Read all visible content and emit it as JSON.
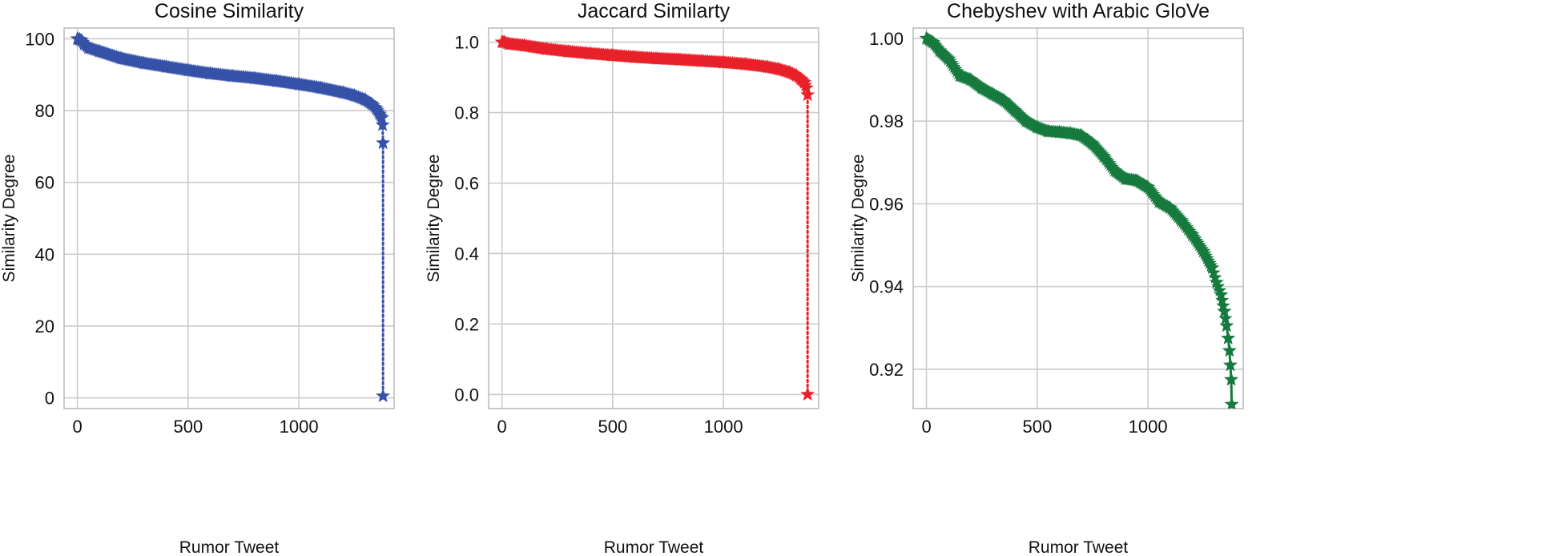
{
  "chart_data": [
    {
      "type": "line",
      "title": "Cosine Similarity",
      "xlabel": "Rumor Tweet",
      "ylabel": "Similarity Degree",
      "xlim": [
        -60,
        1430
      ],
      "ylim": [
        -3,
        103
      ],
      "xticks": [
        0,
        500,
        1000
      ],
      "xtick_labels": [
        "0",
        "500",
        "1000"
      ],
      "yticks": [
        0,
        20,
        40,
        60,
        80,
        100
      ],
      "ytick_labels": [
        "0",
        "20",
        "40",
        "60",
        "80",
        "100"
      ],
      "grid": true,
      "legend": "none",
      "series": [
        {
          "color": "#3651a8",
          "marker": "star",
          "linestyle": "dotted",
          "x": [
            0,
            10,
            20,
            30,
            50,
            100,
            200,
            300,
            400,
            500,
            600,
            700,
            800,
            900,
            1000,
            1100,
            1200,
            1250,
            1300,
            1330,
            1350,
            1365,
            1375,
            1378,
            1380,
            1380
          ],
          "y": [
            100,
            99.8,
            99.5,
            98.5,
            97.5,
            96.5,
            94.5,
            93.2,
            92.2,
            91.2,
            90.3,
            89.6,
            89,
            88.2,
            87.3,
            86.3,
            85,
            84.2,
            83,
            81.8,
            80.5,
            79,
            78,
            76,
            71,
            0.5
          ]
        }
      ]
    },
    {
      "type": "line",
      "title": "Jaccard Similarty",
      "xlabel": "Rumor Tweet",
      "ylabel": "Similarity Degree",
      "xlim": [
        -60,
        1430
      ],
      "ylim": [
        -0.04,
        1.04
      ],
      "xticks": [
        0,
        500,
        1000
      ],
      "xtick_labels": [
        "0",
        "500",
        "1000"
      ],
      "yticks": [
        0.0,
        0.2,
        0.4,
        0.6,
        0.8,
        1.0
      ],
      "ytick_labels": [
        "0.0",
        "0.2",
        "0.4",
        "0.6",
        "0.8",
        "1.0"
      ],
      "grid": true,
      "legend": "none",
      "series": [
        {
          "color": "#e8202a",
          "marker": "star",
          "linestyle": "dotted",
          "x": [
            0,
            10,
            30,
            100,
            200,
            300,
            400,
            500,
            600,
            700,
            800,
            900,
            1000,
            1100,
            1200,
            1250,
            1300,
            1330,
            1350,
            1365,
            1375,
            1380,
            1380
          ],
          "y": [
            1.0,
            1.0,
            0.995,
            0.99,
            0.98,
            0.973,
            0.967,
            0.962,
            0.957,
            0.953,
            0.95,
            0.946,
            0.942,
            0.937,
            0.929,
            0.923,
            0.914,
            0.905,
            0.895,
            0.885,
            0.87,
            0.85,
            0.0
          ]
        }
      ]
    },
    {
      "type": "line",
      "title": "Chebyshev with Arabic GloVe",
      "xlabel": "Rumor Tweet",
      "ylabel": "Similarity Degree",
      "xlim": [
        -60,
        1430
      ],
      "ylim": [
        0.9105,
        1.0025
      ],
      "xticks": [
        0,
        500,
        1000
      ],
      "xtick_labels": [
        "0",
        "500",
        "1000"
      ],
      "yticks": [
        0.92,
        0.94,
        0.96,
        0.98,
        1.0
      ],
      "ytick_labels": [
        "0.92",
        "0.94",
        "0.96",
        "0.98",
        "1.00"
      ],
      "grid": true,
      "legend": "none",
      "series": [
        {
          "color": "#167a3e",
          "marker": "star",
          "linestyle": "solid",
          "x": [
            0,
            30,
            60,
            100,
            150,
            200,
            250,
            300,
            350,
            400,
            450,
            500,
            550,
            600,
            650,
            700,
            750,
            800,
            850,
            900,
            950,
            1000,
            1050,
            1100,
            1150,
            1200,
            1250,
            1290,
            1310,
            1330,
            1345,
            1355,
            1362,
            1368,
            1372,
            1376,
            1378
          ],
          "y": [
            1.0,
            0.999,
            0.997,
            0.995,
            0.991,
            0.99,
            0.988,
            0.9865,
            0.985,
            0.9825,
            0.98,
            0.9785,
            0.9775,
            0.9773,
            0.977,
            0.9765,
            0.9745,
            0.9715,
            0.968,
            0.966,
            0.9656,
            0.964,
            0.9605,
            0.959,
            0.956,
            0.9525,
            0.9485,
            0.9445,
            0.941,
            0.938,
            0.934,
            0.9305,
            0.9275,
            0.9245,
            0.921,
            0.9175,
            0.9115
          ]
        }
      ]
    }
  ]
}
